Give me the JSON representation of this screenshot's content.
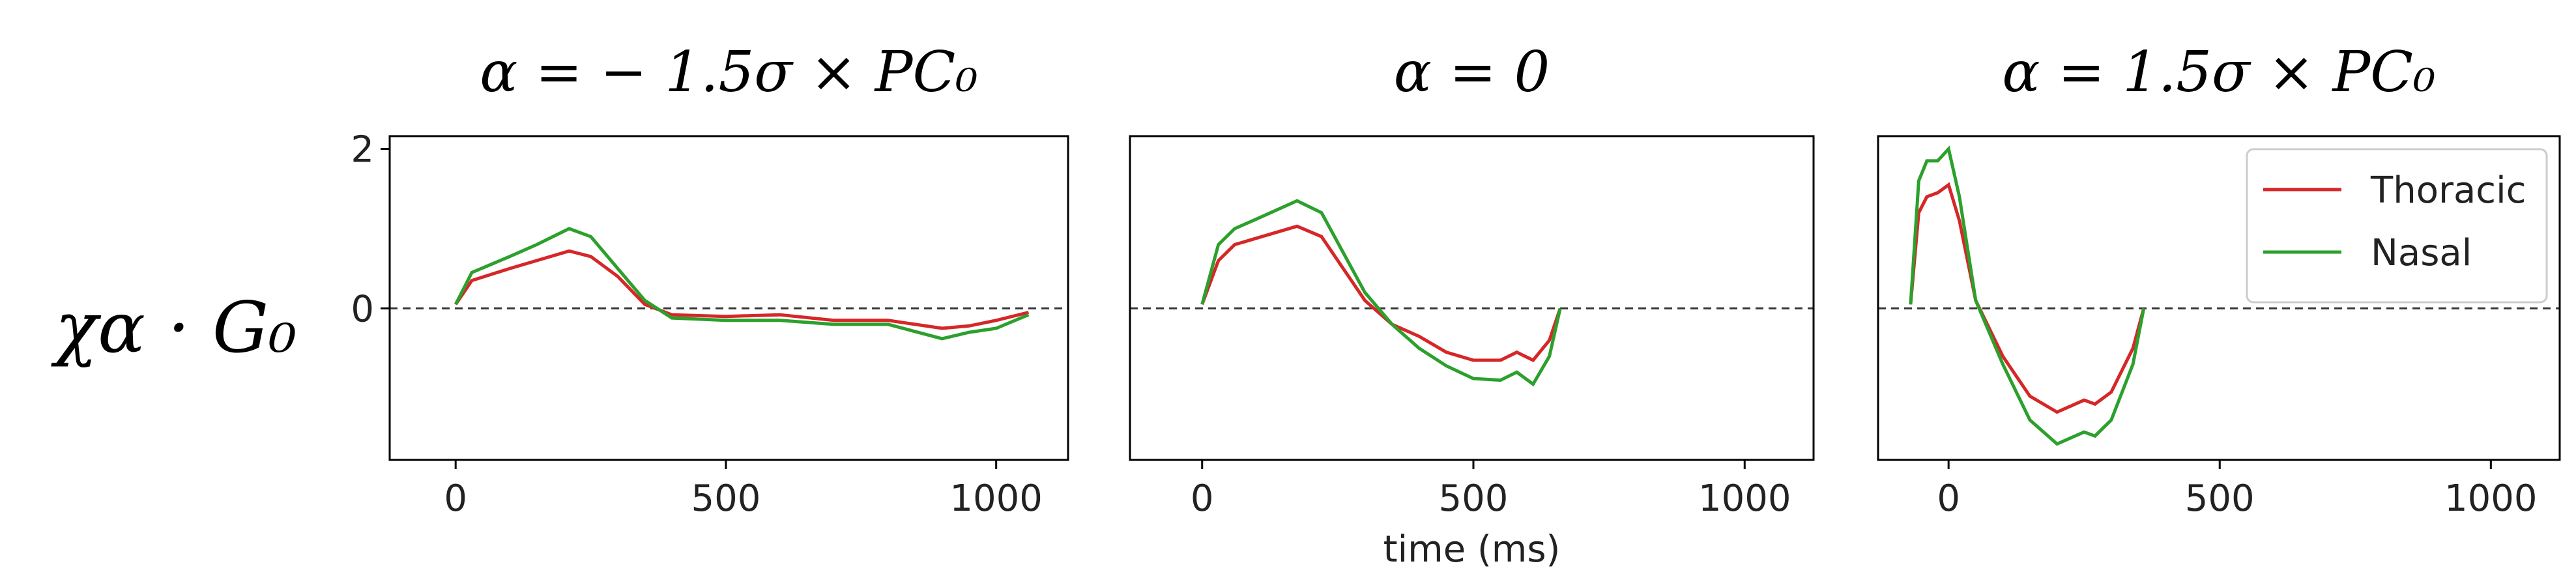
{
  "chart_data": [
    {
      "type": "line",
      "title": "α = − 1.5σ × PC₀",
      "ylabel": "χα · G₀",
      "x": [
        0,
        30,
        100,
        150,
        210,
        250,
        300,
        350,
        400,
        500,
        600,
        700,
        800,
        900,
        950,
        1000,
        1060
      ],
      "series": [
        {
          "name": "Thoracic",
          "color": "#d62728",
          "values": [
            0.05,
            0.35,
            0.5,
            0.6,
            0.72,
            0.65,
            0.4,
            0.05,
            -0.08,
            -0.1,
            -0.08,
            -0.15,
            -0.15,
            -0.25,
            -0.22,
            -0.15,
            -0.05
          ]
        },
        {
          "name": "Nasal",
          "color": "#2ca02c",
          "values": [
            0.05,
            0.45,
            0.65,
            0.8,
            1.0,
            0.9,
            0.5,
            0.1,
            -0.12,
            -0.15,
            -0.15,
            -0.2,
            -0.2,
            -0.38,
            -0.3,
            -0.25,
            -0.08
          ]
        }
      ],
      "xlim": [
        -122,
        1133
      ],
      "ylim": [
        -1.9,
        2.16
      ],
      "xticks": [
        0,
        500,
        1000
      ],
      "yticks": [
        0,
        2
      ],
      "hline": 0
    },
    {
      "type": "line",
      "title": "α = 0",
      "xlabel": "time (ms)",
      "x": [
        0,
        30,
        60,
        100,
        175,
        220,
        300,
        350,
        400,
        450,
        500,
        550,
        580,
        610,
        640,
        660
      ],
      "series": [
        {
          "name": "Thoracic",
          "color": "#d62728",
          "values": [
            0.05,
            0.6,
            0.8,
            0.88,
            1.03,
            0.9,
            0.1,
            -0.2,
            -0.35,
            -0.55,
            -0.65,
            -0.65,
            -0.55,
            -0.65,
            -0.4,
            0
          ]
        },
        {
          "name": "Nasal",
          "color": "#2ca02c",
          "values": [
            0.05,
            0.8,
            1.0,
            1.12,
            1.35,
            1.2,
            0.2,
            -0.2,
            -0.5,
            -0.72,
            -0.88,
            -0.9,
            -0.8,
            -0.95,
            -0.6,
            0
          ]
        }
      ],
      "xlim": [
        -133,
        1127
      ],
      "ylim": [
        -1.9,
        2.16
      ],
      "xticks": [
        0,
        500,
        1000
      ],
      "hline": 0
    },
    {
      "type": "line",
      "title": "α = 1.5σ × PC₀",
      "legend": "upper right",
      "x": [
        -70,
        -55,
        -40,
        -20,
        0,
        20,
        50,
        100,
        150,
        200,
        250,
        270,
        300,
        340,
        360
      ],
      "series": [
        {
          "name": "Thoracic",
          "color": "#d62728",
          "values": [
            0.05,
            1.2,
            1.4,
            1.45,
            1.55,
            1.1,
            0.1,
            -0.6,
            -1.1,
            -1.3,
            -1.15,
            -1.2,
            -1.05,
            -0.5,
            0
          ]
        },
        {
          "name": "Nasal",
          "color": "#2ca02c",
          "values": [
            0.05,
            1.6,
            1.85,
            1.85,
            2.0,
            1.4,
            0.1,
            -0.7,
            -1.4,
            -1.7,
            -1.55,
            -1.6,
            -1.4,
            -0.7,
            0
          ]
        }
      ],
      "xlim": [
        -130,
        1127
      ],
      "ylim": [
        -1.9,
        2.16
      ],
      "xticks": [
        0,
        500,
        1000
      ],
      "hline": 0
    }
  ]
}
